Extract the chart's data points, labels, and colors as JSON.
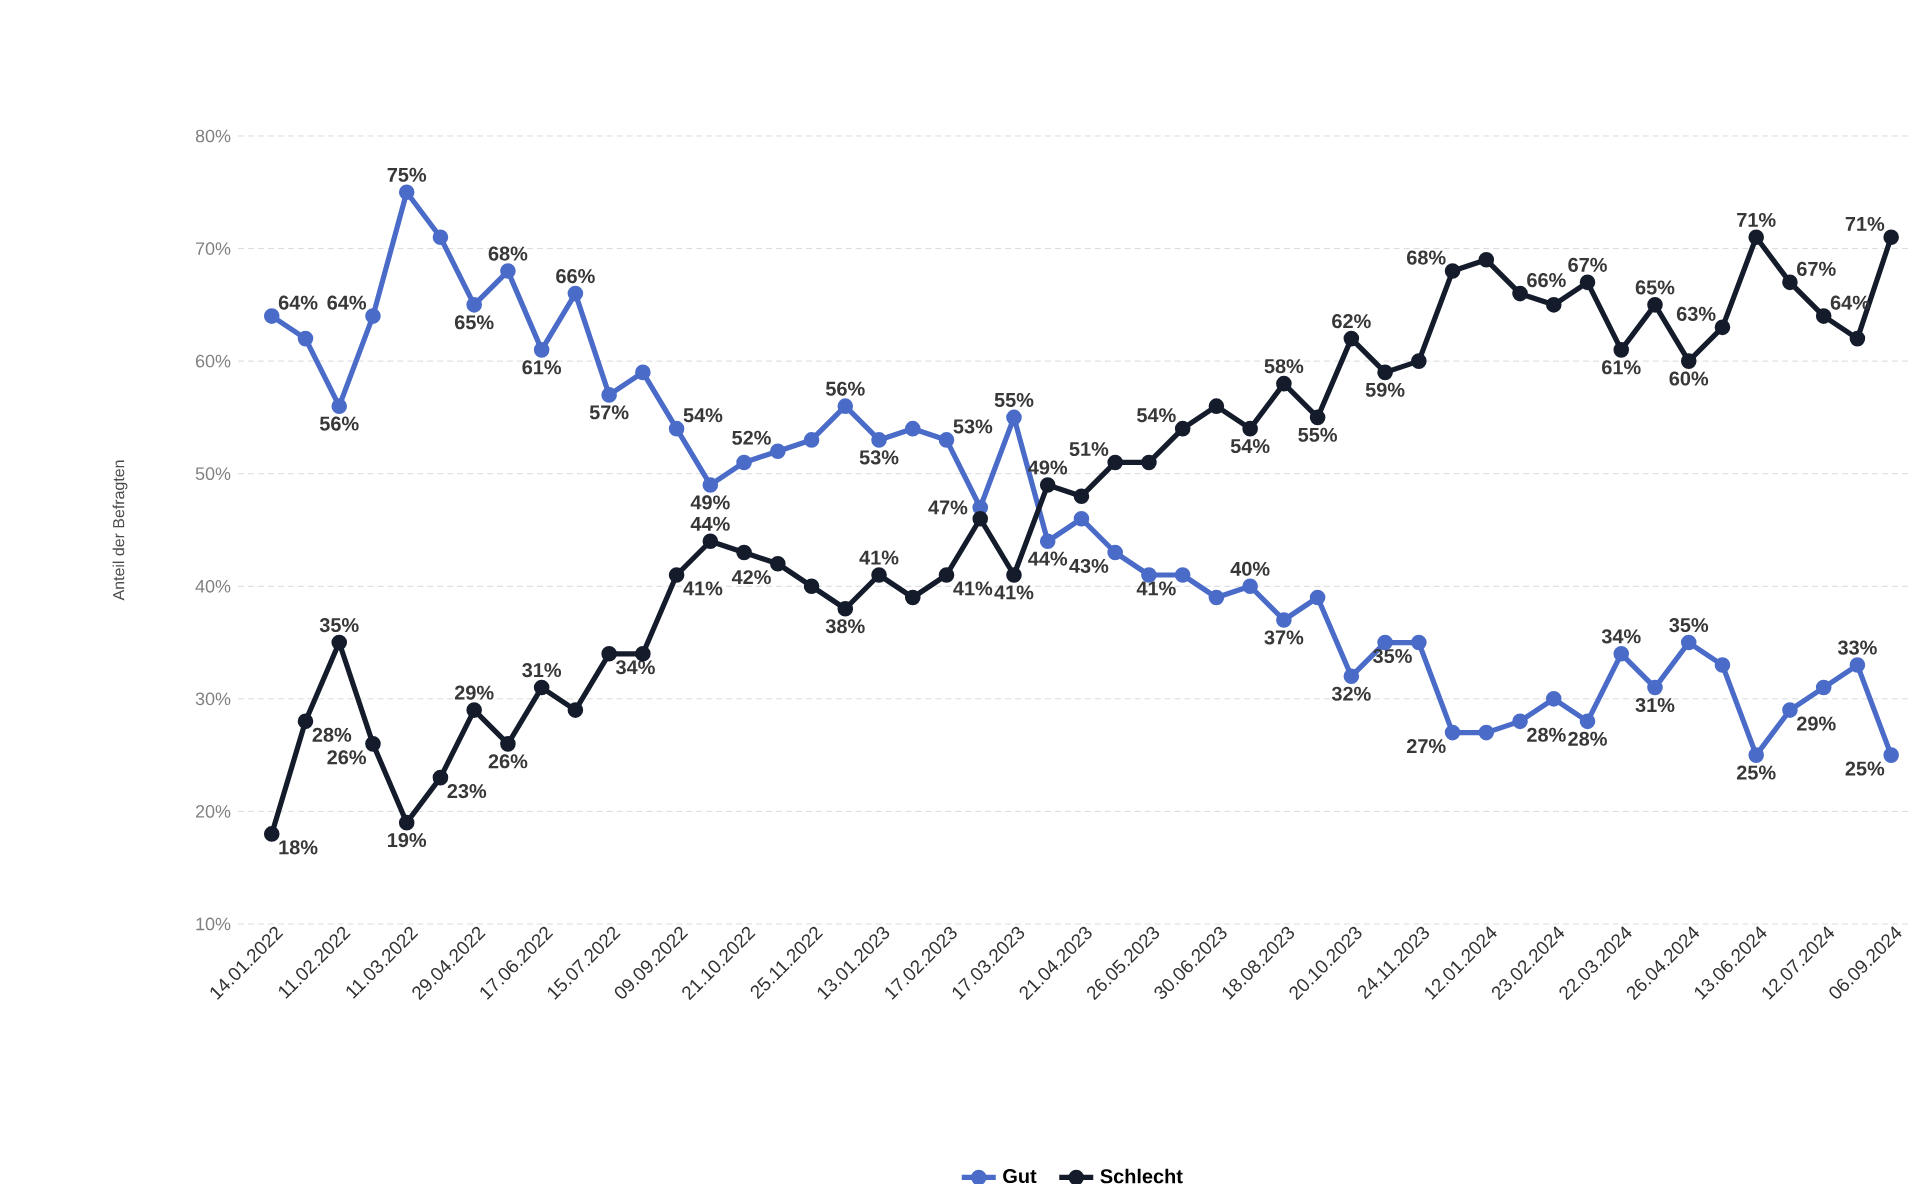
{
  "chart_data": {
    "type": "line",
    "ylabel": "Anteil der Befragten",
    "categories": [
      "14.01.2022",
      null,
      "11.02.2022",
      null,
      "11.03.2022",
      null,
      "29.04.2022",
      null,
      "17.06.2022",
      null,
      "15.07.2022",
      null,
      "09.09.2022",
      null,
      "21.10.2022",
      null,
      "25.11.2022",
      null,
      "13.01.2023",
      null,
      "17.02.2023",
      null,
      "17.03.2023",
      null,
      "21.04.2023",
      null,
      "26.05.2023",
      null,
      "30.06.2023",
      null,
      "18.08.2023",
      null,
      "20.10.2023",
      null,
      "24.11.2023",
      null,
      "12.01.2024",
      null,
      "23.02.2024",
      null,
      "22.03.2024",
      null,
      "26.04.2024",
      null,
      "13.06.2024",
      null,
      "12.07.2024",
      null,
      "06.09.2024"
    ],
    "series": [
      {
        "name": "Gut",
        "color": "#4a6bc8",
        "values": [
          64,
          62,
          56,
          64,
          75,
          71,
          65,
          68,
          61,
          66,
          57,
          59,
          54,
          49,
          51,
          52,
          53,
          56,
          53,
          54,
          53,
          47,
          55,
          44,
          46,
          43,
          41,
          41,
          39,
          40,
          37,
          39,
          32,
          35,
          35,
          27,
          27,
          28,
          30,
          28,
          34,
          31,
          35,
          33,
          25,
          29,
          31,
          33,
          25
        ],
        "value_labels": [
          "64%",
          null,
          "56%",
          "64%",
          "75%",
          null,
          "65%",
          "68%",
          "61%",
          "66%",
          "57%",
          null,
          "54%",
          "49%",
          null,
          "52%",
          null,
          "56%",
          "53%",
          null,
          "53%",
          "47%",
          "55%",
          "44%",
          null,
          "43%",
          null,
          "41%",
          null,
          "40%",
          "37%",
          null,
          "32%",
          null,
          "35%",
          "27%",
          null,
          "28%",
          null,
          "28%",
          "34%",
          "31%",
          "35%",
          null,
          "25%",
          "29%",
          null,
          "33%",
          "25%"
        ]
      },
      {
        "name": "Schlecht",
        "color": "#141c2c",
        "values": [
          18,
          28,
          35,
          26,
          19,
          23,
          29,
          26,
          31,
          29,
          34,
          34,
          41,
          44,
          43,
          42,
          40,
          38,
          41,
          39,
          41,
          46,
          41,
          49,
          48,
          51,
          51,
          54,
          56,
          54,
          58,
          55,
          62,
          59,
          60,
          68,
          69,
          66,
          65,
          67,
          61,
          65,
          60,
          63,
          71,
          67,
          64,
          62,
          71
        ],
        "value_labels": [
          "18%",
          "28%",
          "35%",
          "26%",
          "19%",
          "23%",
          "29%",
          "26%",
          "31%",
          null,
          "34%",
          null,
          "41%",
          "44%",
          null,
          "42%",
          null,
          "38%",
          "41%",
          null,
          "41%",
          null,
          "41%",
          "49%",
          null,
          "51%",
          null,
          "54%",
          null,
          "54%",
          "58%",
          "55%",
          "62%",
          "59%",
          null,
          "68%",
          null,
          "66%",
          null,
          "67%",
          "61%",
          "65%",
          "60%",
          "63%",
          "71%",
          "67%",
          "64%",
          null,
          "71%"
        ]
      }
    ],
    "ylim": [
      10,
      80
    ],
    "yticks": [
      {
        "value": 10,
        "label": "10%"
      },
      {
        "value": 20,
        "label": "20%"
      },
      {
        "value": 30,
        "label": "30%"
      },
      {
        "value": 40,
        "label": "40%"
      },
      {
        "value": 50,
        "label": "50%"
      },
      {
        "value": 60,
        "label": "60%"
      },
      {
        "value": 70,
        "label": "70%"
      },
      {
        "value": 80,
        "label": "80%"
      }
    ],
    "grid": "y",
    "legend": "bottom",
    "marker": "circle",
    "line_style": "solid"
  }
}
